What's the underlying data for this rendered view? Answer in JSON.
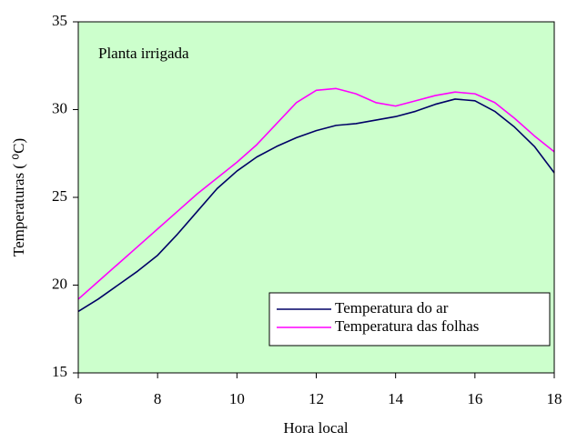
{
  "chart_data": {
    "type": "line",
    "annotation": "Planta irrigada",
    "xlabel": "Hora local",
    "ylabel": "Temperaturas ( ⁰C)",
    "x": [
      6,
      6.5,
      7,
      7.5,
      8,
      8.5,
      9,
      9.5,
      10,
      10.5,
      11,
      11.5,
      12,
      12.5,
      13,
      13.5,
      14,
      14.5,
      15,
      15.5,
      16,
      16.5,
      17,
      17.5,
      18
    ],
    "series": [
      {
        "name": "Temperatura do ar",
        "color": "#000066",
        "values": [
          18.5,
          19.2,
          20.0,
          20.8,
          21.7,
          22.9,
          24.2,
          25.5,
          26.5,
          27.3,
          27.9,
          28.4,
          28.8,
          29.1,
          29.2,
          29.4,
          29.6,
          29.9,
          30.3,
          30.6,
          30.5,
          29.9,
          29.0,
          27.9,
          26.4
        ]
      },
      {
        "name": "Temperatura das folhas",
        "color": "#ff00ff",
        "values": [
          19.2,
          20.2,
          21.2,
          22.2,
          23.2,
          24.2,
          25.2,
          26.1,
          27.0,
          28.0,
          29.2,
          30.4,
          31.1,
          31.2,
          30.9,
          30.4,
          30.2,
          30.5,
          30.8,
          31.0,
          30.9,
          30.4,
          29.5,
          28.5,
          27.6
        ]
      }
    ],
    "xlim": [
      6,
      18
    ],
    "xticks": [
      6,
      8,
      10,
      12,
      14,
      16,
      18
    ],
    "ylim": [
      15,
      35
    ],
    "yticks": [
      15,
      20,
      25,
      30,
      35
    ],
    "plot_background": "#ccffcc",
    "legend": "lower right"
  }
}
